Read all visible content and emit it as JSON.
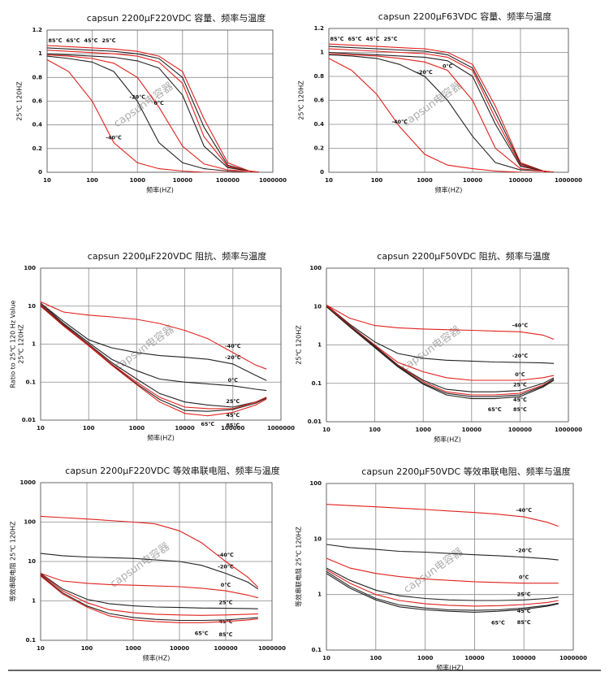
{
  "chart_data": [
    {
      "type": "line",
      "title": "capsun 2200μF220VDC 容量、频率与温度",
      "xlabel": "频率(HZ)",
      "ylabel": "25℃ 120HZ",
      "watermark": "capsun电容器",
      "xscale": "log",
      "yscale": "linear",
      "grid": true,
      "xlim": [
        10,
        1000000
      ],
      "xticks": [
        10,
        100,
        1000,
        10000,
        100000,
        1000000
      ],
      "ylim": [
        0,
        1.2
      ],
      "yticks": [
        0,
        0.2,
        0.4,
        0.6,
        0.8,
        1,
        1.2
      ],
      "x": [
        10,
        30,
        100,
        300,
        1000,
        3000,
        10000,
        30000,
        100000,
        300000,
        500000
      ],
      "series": [
        {
          "name": "85℃",
          "color": "#e0201b",
          "values": [
            1.07,
            1.06,
            1.05,
            1.04,
            1.02,
            0.98,
            0.85,
            0.45,
            0.08,
            0.01,
            0
          ]
        },
        {
          "name": "65℃",
          "color": "#222222",
          "values": [
            1.05,
            1.04,
            1.03,
            1.02,
            1.0,
            0.96,
            0.8,
            0.38,
            0.06,
            0.01,
            0
          ]
        },
        {
          "name": "45℃",
          "color": "#e0201b",
          "values": [
            1.03,
            1.02,
            1.01,
            1.0,
            0.98,
            0.93,
            0.75,
            0.3,
            0.05,
            0.01,
            0
          ]
        },
        {
          "name": "25℃",
          "color": "#222222",
          "values": [
            1.0,
            0.99,
            0.98,
            0.97,
            0.94,
            0.88,
            0.65,
            0.22,
            0.04,
            0.01,
            0
          ]
        },
        {
          "name": "-20℃",
          "color": "#222222",
          "values": [
            0.98,
            0.96,
            0.93,
            0.85,
            0.6,
            0.25,
            0.08,
            0.03,
            0.01,
            0,
            0
          ]
        },
        {
          "name": "0℃",
          "color": "#e0201b",
          "values": [
            0.99,
            0.98,
            0.96,
            0.92,
            0.8,
            0.55,
            0.22,
            0.07,
            0.02,
            0.01,
            0
          ]
        },
        {
          "name": "-40℃",
          "color": "#e0201b",
          "values": [
            0.95,
            0.85,
            0.6,
            0.25,
            0.08,
            0.03,
            0.01,
            0,
            0,
            0,
            0
          ]
        }
      ]
    },
    {
      "type": "line",
      "title": "capsun 2200μF63VDC 容量、频率与温度",
      "xlabel": "频率(HZ)",
      "ylabel": "25℃ 120HZ",
      "watermark": "capsun电容器",
      "xscale": "log",
      "yscale": "linear",
      "grid": true,
      "xlim": [
        10,
        1000000
      ],
      "xticks": [
        10,
        100,
        1000,
        10000,
        100000,
        1000000
      ],
      "ylim": [
        0,
        1.2
      ],
      "yticks": [
        0,
        0.2,
        0.4,
        0.6,
        0.8,
        1,
        1.2
      ],
      "x": [
        10,
        30,
        100,
        300,
        1000,
        3000,
        10000,
        30000,
        100000,
        300000,
        500000
      ],
      "series": [
        {
          "name": "85℃",
          "color": "#e0201b",
          "values": [
            1.07,
            1.06,
            1.05,
            1.04,
            1.03,
            1.0,
            0.9,
            0.55,
            0.08,
            0.01,
            0
          ]
        },
        {
          "name": "65℃",
          "color": "#222222",
          "values": [
            1.05,
            1.04,
            1.03,
            1.02,
            1.01,
            0.98,
            0.87,
            0.5,
            0.07,
            0.01,
            0
          ]
        },
        {
          "name": "45℃",
          "color": "#e0201b",
          "values": [
            1.03,
            1.02,
            1.01,
            1.0,
            0.99,
            0.96,
            0.85,
            0.45,
            0.06,
            0.01,
            0
          ]
        },
        {
          "name": "25℃",
          "color": "#222222",
          "values": [
            1.0,
            0.99,
            0.98,
            0.97,
            0.96,
            0.93,
            0.8,
            0.4,
            0.05,
            0.01,
            0
          ]
        },
        {
          "name": "-20℃",
          "color": "#222222",
          "values": [
            0.98,
            0.97,
            0.95,
            0.9,
            0.8,
            0.6,
            0.3,
            0.08,
            0.02,
            0.01,
            0
          ]
        },
        {
          "name": "0℃",
          "color": "#e0201b",
          "values": [
            0.99,
            0.98,
            0.97,
            0.95,
            0.92,
            0.85,
            0.6,
            0.2,
            0.03,
            0.01,
            0
          ]
        },
        {
          "name": "-40℃",
          "color": "#e0201b",
          "values": [
            0.95,
            0.85,
            0.65,
            0.38,
            0.15,
            0.06,
            0.03,
            0.01,
            0,
            0,
            0
          ]
        }
      ]
    },
    {
      "type": "line",
      "title": "capsun 2200μF220VDC 阻抗、频率与温度",
      "xlabel": "频率(HZ)",
      "ylabel": "Ratio to 25℃ 120 Hz Value",
      "ylabel2": "25℃ 120HZ",
      "watermark": "capsun电容器",
      "xscale": "log",
      "yscale": "log",
      "grid": true,
      "xlim": [
        10,
        1000000
      ],
      "xticks": [
        10,
        100,
        1000,
        10000,
        100000,
        1000000
      ],
      "ylim": [
        0.01,
        100
      ],
      "yticks": [
        0.01,
        0.1,
        1,
        10,
        100
      ],
      "x": [
        10,
        30,
        100,
        300,
        1000,
        3000,
        10000,
        30000,
        100000,
        300000,
        500000
      ],
      "series": [
        {
          "name": "-40℃",
          "color": "#e0201b",
          "values": [
            13,
            7,
            5.8,
            5.2,
            4.5,
            3.5,
            2.3,
            1.4,
            0.6,
            0.28,
            0.22
          ]
        },
        {
          "name": "-20℃",
          "color": "#222222",
          "values": [
            12,
            4,
            1.3,
            0.8,
            0.6,
            0.5,
            0.45,
            0.4,
            0.3,
            0.15,
            0.11
          ]
        },
        {
          "name": "0℃",
          "color": "#222222",
          "values": [
            12,
            3.5,
            1.1,
            0.4,
            0.2,
            0.12,
            0.1,
            0.09,
            0.08,
            0.065,
            0.06
          ]
        },
        {
          "name": "25℃",
          "color": "#222222",
          "values": [
            11,
            3.3,
            1.0,
            0.33,
            0.12,
            0.05,
            0.03,
            0.025,
            0.022,
            0.03,
            0.04
          ]
        },
        {
          "name": "45℃",
          "color": "#e0201b",
          "values": [
            11,
            3.2,
            0.95,
            0.3,
            0.1,
            0.04,
            0.022,
            0.02,
            0.02,
            0.03,
            0.04
          ]
        },
        {
          "name": "65℃",
          "color": "#222222",
          "values": [
            10.5,
            3.1,
            0.9,
            0.29,
            0.09,
            0.035,
            0.018,
            0.017,
            0.019,
            0.028,
            0.038
          ]
        },
        {
          "name": "85℃",
          "color": "#e0201b",
          "values": [
            10,
            3,
            0.9,
            0.28,
            0.085,
            0.03,
            0.015,
            0.013,
            0.016,
            0.025,
            0.036
          ]
        }
      ]
    },
    {
      "type": "line",
      "title": "capsun 2200μF50VDC 阻抗、频率与温度",
      "xlabel": "频率(HZ)",
      "ylabel": "25℃ 120HZ",
      "watermark": "capsun电容器",
      "xscale": "log",
      "yscale": "log",
      "grid": true,
      "xlim": [
        10,
        1000000
      ],
      "xticks": [
        10,
        100,
        1000,
        10000,
        100000,
        1000000
      ],
      "ylim": [
        0.01,
        100
      ],
      "yticks": [
        0.01,
        0.1,
        1,
        10,
        100
      ],
      "x": [
        10,
        30,
        100,
        300,
        1000,
        3000,
        10000,
        30000,
        100000,
        300000,
        500000
      ],
      "series": [
        {
          "name": "-40℃",
          "color": "#e0201b",
          "values": [
            11,
            5,
            3.2,
            2.8,
            2.6,
            2.5,
            2.4,
            2.3,
            2.2,
            1.8,
            1.4
          ]
        },
        {
          "name": "-20℃",
          "color": "#222222",
          "values": [
            11,
            3.5,
            1.2,
            0.6,
            0.45,
            0.4,
            0.38,
            0.36,
            0.35,
            0.34,
            0.33
          ]
        },
        {
          "name": "0℃",
          "color": "#e0201b",
          "values": [
            11,
            3.3,
            1.0,
            0.35,
            0.2,
            0.14,
            0.12,
            0.12,
            0.12,
            0.14,
            0.16
          ]
        },
        {
          "name": "25℃",
          "color": "#222222",
          "values": [
            10.5,
            3.2,
            0.95,
            0.3,
            0.12,
            0.07,
            0.06,
            0.06,
            0.065,
            0.1,
            0.14
          ]
        },
        {
          "name": "45℃",
          "color": "#e0201b",
          "values": [
            10.5,
            3.1,
            0.9,
            0.29,
            0.11,
            0.06,
            0.05,
            0.05,
            0.055,
            0.09,
            0.13
          ]
        },
        {
          "name": "65℃",
          "color": "#222222",
          "values": [
            10,
            3,
            0.88,
            0.28,
            0.1,
            0.055,
            0.045,
            0.045,
            0.05,
            0.085,
            0.13
          ]
        },
        {
          "name": "85℃",
          "color": "#222222",
          "values": [
            10,
            3,
            0.85,
            0.27,
            0.095,
            0.05,
            0.04,
            0.04,
            0.045,
            0.08,
            0.12
          ]
        }
      ]
    },
    {
      "type": "line",
      "title": "capsun 2200μF220VDC 等效串联电阻、频率与温度",
      "xlabel": "频率(HZ)",
      "ylabel": "等效串联电阻 25℃ 120HZ",
      "watermark": "capsun电容器",
      "xscale": "log",
      "yscale": "log",
      "grid": true,
      "xlim": [
        10,
        1000000
      ],
      "xticks": [
        10,
        100,
        1000,
        10000,
        100000,
        1000000
      ],
      "ylim": [
        0.1,
        1000
      ],
      "yticks": [
        0.1,
        1,
        10,
        100,
        1000
      ],
      "x": [
        10,
        30,
        100,
        300,
        1000,
        3000,
        10000,
        30000,
        100000,
        300000,
        500000
      ],
      "series": [
        {
          "name": "-40℃",
          "color": "#e0201b",
          "values": [
            140,
            130,
            120,
            110,
            100,
            90,
            60,
            30,
            10,
            4,
            2.2
          ]
        },
        {
          "name": "-20℃",
          "color": "#222222",
          "values": [
            16,
            14,
            13,
            12.5,
            12,
            11,
            10,
            8,
            5,
            3,
            2
          ]
        },
        {
          "name": "0℃",
          "color": "#e0201b",
          "values": [
            5,
            3.2,
            2.8,
            2.6,
            2.5,
            2.4,
            2.3,
            2.1,
            1.8,
            1.4,
            1.2
          ]
        },
        {
          "name": "25℃",
          "color": "#222222",
          "values": [
            5,
            2,
            1.1,
            0.85,
            0.75,
            0.7,
            0.68,
            0.66,
            0.65,
            0.64,
            0.63
          ]
        },
        {
          "name": "45℃",
          "color": "#e0201b",
          "values": [
            4.8,
            1.8,
            0.9,
            0.6,
            0.5,
            0.46,
            0.44,
            0.43,
            0.44,
            0.46,
            0.47
          ]
        },
        {
          "name": "65℃",
          "color": "#222222",
          "values": [
            4.5,
            1.6,
            0.75,
            0.48,
            0.38,
            0.34,
            0.32,
            0.32,
            0.33,
            0.36,
            0.38
          ]
        },
        {
          "name": "85℃",
          "color": "#e0201b",
          "values": [
            4.3,
            1.5,
            0.7,
            0.42,
            0.33,
            0.3,
            0.28,
            0.28,
            0.3,
            0.33,
            0.35
          ]
        }
      ]
    },
    {
      "type": "line",
      "title": "capsun 2200μF50VDC 等效串联电阻、频率与温度",
      "xlabel": "频率(HZ)",
      "ylabel": "等效串联电阻 25℃ 120HZ",
      "watermark": "capsun电容器",
      "xscale": "log",
      "yscale": "log",
      "grid": true,
      "xlim": [
        10,
        1000000
      ],
      "xticks": [
        10,
        100,
        1000,
        10000,
        100000,
        1000000
      ],
      "ylim": [
        0.1,
        100
      ],
      "yticks": [
        0.1,
        1,
        10,
        100
      ],
      "x": [
        10,
        30,
        100,
        300,
        1000,
        3000,
        10000,
        30000,
        100000,
        300000,
        500000
      ],
      "series": [
        {
          "name": "-40℃",
          "color": "#e0201b",
          "values": [
            42,
            40,
            38,
            36,
            34,
            32,
            30,
            28,
            25,
            20,
            17
          ]
        },
        {
          "name": "-20℃",
          "color": "#222222",
          "values": [
            8,
            7,
            6.5,
            6,
            5.8,
            5.5,
            5.2,
            5,
            4.7,
            4.4,
            4.2
          ]
        },
        {
          "name": "0℃",
          "color": "#e0201b",
          "values": [
            4.5,
            3,
            2.4,
            2.1,
            1.9,
            1.8,
            1.7,
            1.65,
            1.6,
            1.6,
            1.6
          ]
        },
        {
          "name": "25℃",
          "color": "#222222",
          "values": [
            3,
            1.8,
            1.2,
            0.95,
            0.85,
            0.8,
            0.78,
            0.78,
            0.8,
            0.85,
            0.9
          ]
        },
        {
          "name": "45℃",
          "color": "#e0201b",
          "values": [
            2.8,
            1.6,
            1.0,
            0.78,
            0.68,
            0.64,
            0.62,
            0.63,
            0.66,
            0.72,
            0.78
          ]
        },
        {
          "name": "65℃",
          "color": "#222222",
          "values": [
            2.6,
            1.4,
            0.85,
            0.65,
            0.57,
            0.53,
            0.52,
            0.53,
            0.57,
            0.64,
            0.7
          ]
        },
        {
          "name": "85℃",
          "color": "#222222",
          "values": [
            2.4,
            1.3,
            0.8,
            0.6,
            0.53,
            0.5,
            0.48,
            0.5,
            0.54,
            0.62,
            0.68
          ]
        }
      ]
    }
  ]
}
